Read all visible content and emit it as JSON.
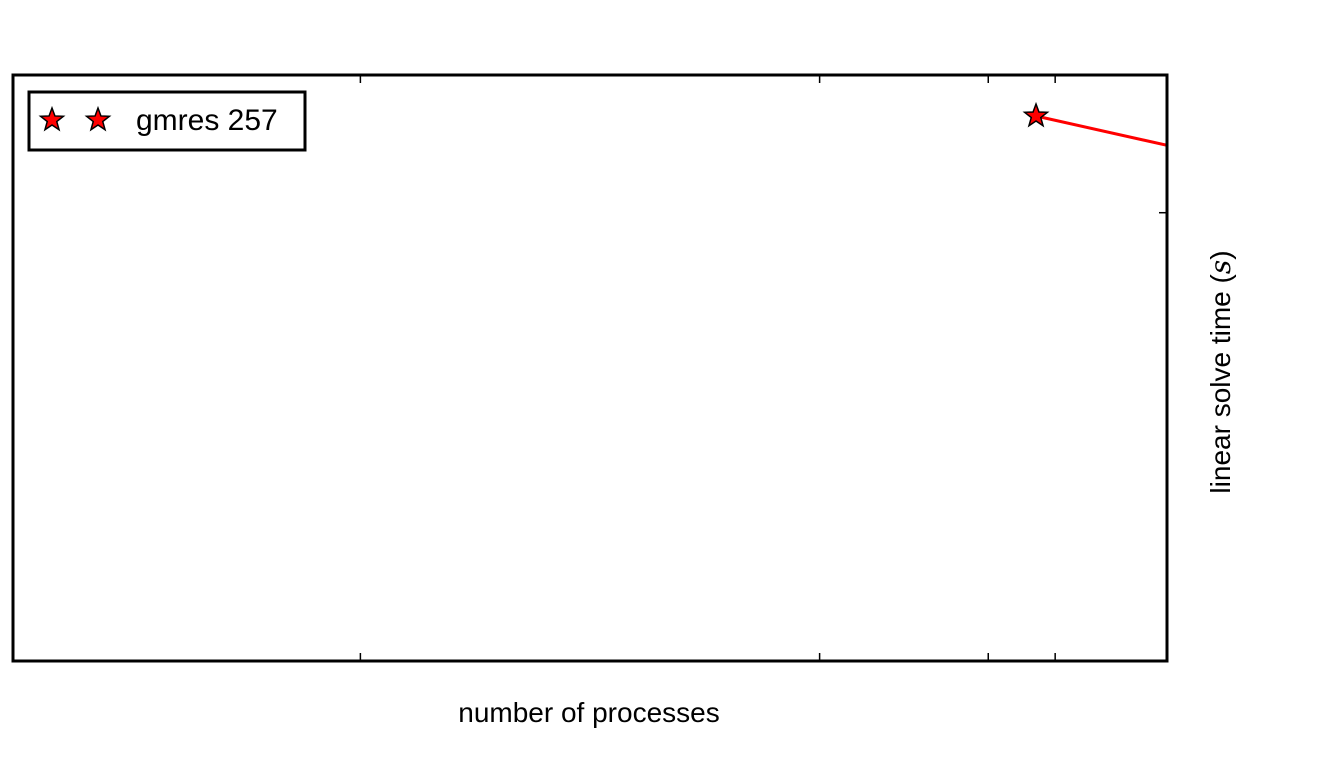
{
  "chart_data": {
    "type": "line",
    "title": "",
    "xlabel": "number of processes",
    "ylabel": {
      "prefix": "linear solve time ",
      "open": "(",
      "unit": "s",
      "close": ")"
    },
    "xscale": "log",
    "xlim": [
      1,
      10
    ],
    "ylim": [
      0,
      1
    ],
    "grid": false,
    "legend_placement": "top-left",
    "series": [
      {
        "name": "gmres 257",
        "color": "#ff0000",
        "marker": "star",
        "points": [
          {
            "x": 7.7,
            "y": 0.93
          },
          {
            "x": 10.0,
            "y": 0.88
          }
        ]
      }
    ]
  }
}
